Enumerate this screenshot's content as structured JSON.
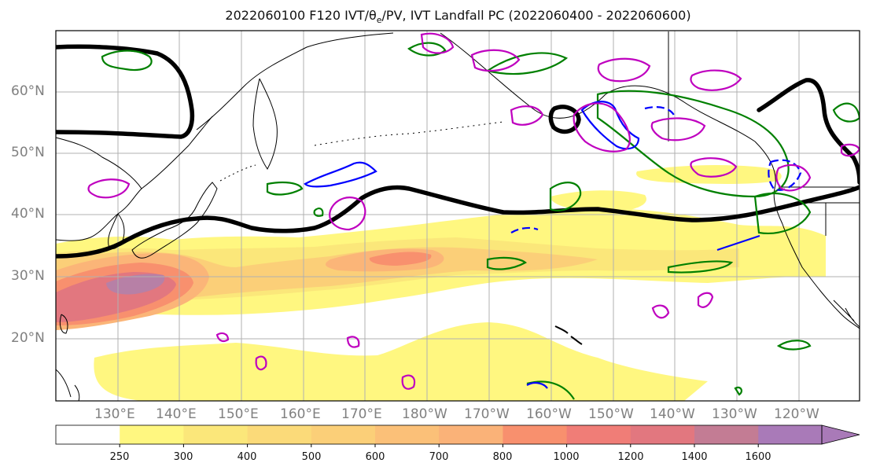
{
  "title": "2022060100 F120 IVT/θe/PV, IVT Landfall PC (2022060400 - 2022060600)",
  "map": {
    "lat_labels": [
      "60°N",
      "50°N",
      "40°N",
      "30°N",
      "20°N"
    ],
    "lon_labels": [
      "130°E",
      "140°E",
      "150°E",
      "160°E",
      "170°E",
      "180°W",
      "170°W",
      "160°W",
      "150°W",
      "140°W",
      "130°W",
      "120°W"
    ],
    "colors": {
      "ivt_fill_250": "#fff780",
      "ivt_fill_300": "#fbe77a",
      "ivt_fill_400": "#fbcf78",
      "ivt_fill_500": "#fbb578",
      "ivt_fill_700": "#f8906e",
      "ivt_fill_1000": "#e2777f",
      "ivt_fill_1400": "#b780a6",
      "contour_theta_e": "#008000",
      "contour_pv_neg": "#0000ff",
      "contour_pv_pos": "#bf00bf",
      "landfall_pc": "#000000",
      "coastline": "#000000",
      "gridline": "#b0b0b0"
    }
  },
  "colorbar": {
    "ticks": [
      "250",
      "300",
      "400",
      "500",
      "600",
      "700",
      "800",
      "1000",
      "1200",
      "1400",
      "1600"
    ],
    "colors": [
      "#ffffff",
      "#fff780",
      "#fbe77a",
      "#fbda79",
      "#fbcf78",
      "#fbc078",
      "#fab278",
      "#f8906e",
      "#f07d77",
      "#e2777f",
      "#c37c94",
      "#a97ab8"
    ]
  }
}
